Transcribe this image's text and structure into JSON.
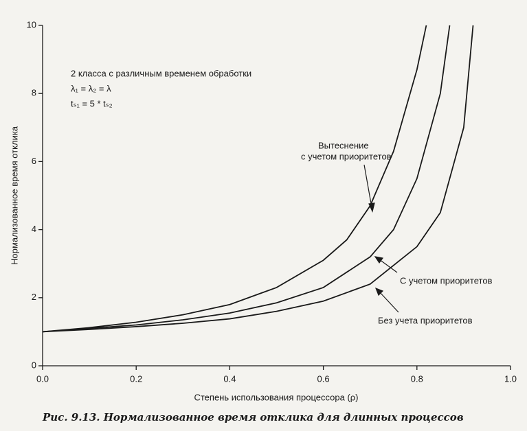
{
  "chart_data": {
    "type": "line",
    "xlabel": "Степень использования процессора (ρ)",
    "ylabel": "Нормализованное время отклика",
    "caption": "Рис. 9.13. Нормализованное время отклика для длинных процессов",
    "annotations": [
      "2 класса с различным временем обработки",
      "λ₁ = λ₂ = λ",
      "tₛ₁ = 5 * tₛ₂",
      "Вытеснение",
      "с учетом приоритетов",
      "С учетом приоритетов",
      "Без учета приоритетов"
    ],
    "xlim": [
      0,
      1
    ],
    "ylim": [
      0,
      10
    ],
    "xticks": [
      {
        "value": 0,
        "label": "0.0"
      },
      0.2,
      0.4,
      0.6,
      0.8,
      {
        "value": 1,
        "label": "1.0"
      }
    ],
    "yticks": [
      0,
      2,
      4,
      6,
      8,
      10
    ],
    "color": "#1a1a1a",
    "series": [
      {
        "x": [
          0,
          0.1,
          0.2,
          0.3,
          0.4,
          0.5,
          0.6,
          0.65,
          0.7,
          0.75,
          0.8,
          0.82
        ],
        "values": [
          1,
          1.12,
          1.28,
          1.5,
          1.8,
          2.3,
          3.1,
          3.7,
          4.7,
          6.3,
          8.7,
          10
        ]
      },
      {
        "x": [
          0,
          0.1,
          0.2,
          0.3,
          0.4,
          0.5,
          0.6,
          0.7,
          0.75,
          0.8,
          0.85,
          0.87
        ],
        "values": [
          1,
          1.1,
          1.2,
          1.35,
          1.55,
          1.85,
          2.3,
          3.2,
          4,
          5.5,
          8,
          10
        ]
      },
      {
        "x": [
          0,
          0.1,
          0.2,
          0.3,
          0.4,
          0.5,
          0.6,
          0.7,
          0.8,
          0.85,
          0.9,
          0.92
        ],
        "values": [
          1,
          1.07,
          1.15,
          1.25,
          1.38,
          1.6,
          1.9,
          2.4,
          3.5,
          4.5,
          7,
          10
        ]
      }
    ]
  }
}
